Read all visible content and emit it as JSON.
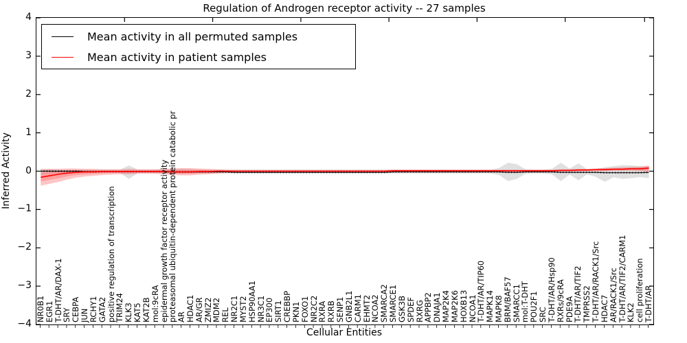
{
  "chart_data": {
    "type": "line",
    "title": "Regulation of Androgen receptor activity -- 27 samples",
    "xlabel": "Cellular Entities",
    "ylabel": "Inferred Activity",
    "ylim": [
      -4,
      4
    ],
    "yticks": [
      4,
      3,
      2,
      1,
      0,
      -1,
      -2,
      -3,
      -4
    ],
    "yticklabels": [
      "4",
      "3",
      "2",
      "1",
      "0",
      "−1",
      "−2",
      "−3",
      "−4"
    ],
    "grid": false,
    "legend_position": "upper left",
    "categories": [
      "NR0B1",
      "EGR1",
      "T-DHT/AR/DAX-1",
      "SRY",
      "CEBPA",
      "JUN",
      "RCHY1",
      "GATA2",
      "positive regulation of transcription",
      "TRIM24",
      "KLK3",
      "KAT5",
      "KAT2B",
      "mol:9cRA",
      "epidermal growth factor receptor activity",
      "proteasomal ubiquitin-dependent protein catabolic pr",
      "AR",
      "HDAC1",
      "AR/GR",
      "ZMIZ2",
      "MDM2",
      "REL",
      "NR2C1",
      "MYST2",
      "HSP90AA1",
      "NR3C1",
      "EP300",
      "SIRT1",
      "CREBBP",
      "PKN1",
      "FOXO1",
      "NR2C2",
      "RXRA",
      "RXRB",
      "SENP1",
      "GNB2L1",
      "CARM1",
      "EHMT2",
      "NCOA2",
      "SMARCA2",
      "SMARCE1",
      "GSK3B",
      "SPDEF",
      "RXRG",
      "APPBP2",
      "DNAJA1",
      "MAP2K4",
      "MAP2K6",
      "HOXB13",
      "NCOA1",
      "T-DHT/AR/TIP60",
      "MAPK14",
      "MAPK8",
      "BRM/BAF57",
      "SMARCC1",
      "mol:T-DHT",
      "POU2F1",
      "SRC",
      "T-DHT/AR/Hsp90",
      "RXRs/9cRA",
      "PDE9A",
      "T-DHT/AR/TIF2",
      "TMPRSS2",
      "T-DHT/AR/RACK1/Src",
      "HDAC7",
      "AR/RACK1/Src",
      "T-DHT/AR/TIF2/CARM1",
      "KLK2",
      "cell proliferation",
      "T-DHT/AR"
    ],
    "series": [
      {
        "name": "Mean activity in all permuted samples",
        "color": "#000000",
        "band_color": "#999999",
        "values": [
          0,
          0,
          0,
          0,
          0,
          -0.01,
          -0.01,
          -0.01,
          -0.01,
          -0.01,
          -0.01,
          -0.01,
          -0.01,
          -0.01,
          -0.01,
          -0.02,
          -0.02,
          -0.02,
          -0.02,
          -0.02,
          -0.02,
          -0.02,
          -0.03,
          -0.03,
          -0.03,
          -0.03,
          -0.03,
          -0.03,
          -0.03,
          -0.03,
          -0.03,
          -0.03,
          -0.03,
          -0.03,
          -0.03,
          -0.03,
          -0.03,
          -0.03,
          -0.03,
          -0.03,
          -0.02,
          -0.02,
          -0.02,
          -0.02,
          -0.02,
          -0.02,
          -0.02,
          -0.02,
          -0.02,
          -0.02,
          -0.02,
          -0.02,
          -0.02,
          -0.03,
          -0.03,
          -0.02,
          -0.02,
          -0.02,
          -0.02,
          -0.03,
          -0.03,
          -0.03,
          -0.03,
          -0.03,
          -0.04,
          -0.04,
          -0.04,
          -0.04,
          -0.04,
          -0.03
        ],
        "band_upper": [
          0.06,
          0.05,
          0.04,
          0.04,
          0.04,
          0.04,
          0.04,
          0.04,
          0.04,
          0.04,
          0.15,
          0.04,
          0.04,
          0.04,
          0.05,
          0.05,
          0.06,
          0.05,
          0.04,
          0.04,
          0.04,
          0.04,
          0.04,
          0.04,
          0.04,
          0.04,
          0.04,
          0.04,
          0.04,
          0.04,
          0.04,
          0.04,
          0.04,
          0.04,
          0.04,
          0.04,
          0.04,
          0.04,
          0.04,
          0.04,
          0.04,
          0.04,
          0.04,
          0.04,
          0.04,
          0.04,
          0.04,
          0.04,
          0.04,
          0.04,
          0.04,
          0.04,
          0.08,
          0.22,
          0.18,
          0.05,
          0.04,
          0.04,
          0.06,
          0.22,
          0.07,
          0.2,
          0.05,
          0.06,
          0.1,
          0.13,
          0.16,
          0.15,
          0.13,
          0.12
        ],
        "band_lower": [
          -0.08,
          -0.06,
          -0.05,
          -0.05,
          -0.05,
          -0.05,
          -0.05,
          -0.05,
          -0.05,
          -0.05,
          -0.2,
          -0.05,
          -0.05,
          -0.05,
          -0.06,
          -0.06,
          -0.07,
          -0.06,
          -0.06,
          -0.06,
          -0.06,
          -0.06,
          -0.06,
          -0.06,
          -0.06,
          -0.06,
          -0.06,
          -0.06,
          -0.06,
          -0.06,
          -0.06,
          -0.06,
          -0.06,
          -0.06,
          -0.06,
          -0.06,
          -0.06,
          -0.06,
          -0.06,
          -0.06,
          -0.06,
          -0.06,
          -0.06,
          -0.06,
          -0.06,
          -0.06,
          -0.06,
          -0.06,
          -0.06,
          -0.06,
          -0.06,
          -0.06,
          -0.1,
          -0.26,
          -0.2,
          -0.07,
          -0.06,
          -0.06,
          -0.08,
          -0.26,
          -0.09,
          -0.24,
          -0.08,
          -0.15,
          -0.28,
          -0.16,
          -0.2,
          -0.18,
          -0.16,
          -0.18
        ]
      },
      {
        "name": "Mean activity in patient samples",
        "color": "#ff0000",
        "band_color": "#ff3030",
        "values": [
          -0.16,
          -0.12,
          -0.08,
          -0.05,
          -0.03,
          -0.02,
          -0.02,
          -0.01,
          -0.01,
          -0.01,
          -0.01,
          -0.01,
          -0.01,
          -0.01,
          -0.01,
          -0.02,
          -0.02,
          -0.02,
          -0.01,
          -0.01,
          0,
          0,
          0,
          0,
          0,
          0,
          0,
          0,
          0,
          0,
          0,
          0,
          0,
          0,
          0,
          0,
          0,
          0,
          0,
          0,
          0.01,
          0.01,
          0.01,
          0.01,
          0.01,
          0.01,
          0.01,
          0.01,
          0.01,
          0.01,
          0.01,
          0.01,
          0.01,
          0.01,
          0.01,
          0.01,
          0.01,
          0.01,
          0.01,
          0.02,
          0.02,
          0.03,
          0.03,
          0.04,
          0.04,
          0.05,
          0.05,
          0.06,
          0.06,
          0.08
        ],
        "band_upper": [
          0.05,
          0.06,
          0.06,
          0.07,
          0.07,
          0.06,
          0.06,
          0.05,
          0.05,
          0.05,
          0.06,
          0.05,
          0.05,
          0.05,
          0.06,
          0.07,
          0.08,
          0.08,
          0.07,
          0.06,
          0.05,
          0.04,
          0.03,
          0.03,
          0.03,
          0.03,
          0.03,
          0.03,
          0.03,
          0.03,
          0.03,
          0.03,
          0.03,
          0.03,
          0.03,
          0.03,
          0.03,
          0.03,
          0.03,
          0.03,
          0.04,
          0.04,
          0.04,
          0.04,
          0.04,
          0.04,
          0.04,
          0.04,
          0.04,
          0.04,
          0.04,
          0.04,
          0.04,
          0.04,
          0.04,
          0.04,
          0.04,
          0.04,
          0.04,
          0.05,
          0.05,
          0.06,
          0.06,
          0.07,
          0.08,
          0.09,
          0.1,
          0.11,
          0.12,
          0.15
        ],
        "band_lower": [
          -0.38,
          -0.33,
          -0.28,
          -0.22,
          -0.17,
          -0.14,
          -0.12,
          -0.1,
          -0.09,
          -0.08,
          -0.08,
          -0.07,
          -0.07,
          -0.07,
          -0.08,
          -0.1,
          -0.11,
          -0.11,
          -0.09,
          -0.08,
          -0.06,
          -0.05,
          -0.04,
          -0.04,
          -0.04,
          -0.04,
          -0.04,
          -0.04,
          -0.04,
          -0.04,
          -0.04,
          -0.04,
          -0.04,
          -0.04,
          -0.04,
          -0.04,
          -0.04,
          -0.04,
          -0.04,
          -0.04,
          -0.03,
          -0.03,
          -0.03,
          -0.03,
          -0.03,
          -0.03,
          -0.03,
          -0.03,
          -0.03,
          -0.03,
          -0.03,
          -0.03,
          -0.03,
          -0.03,
          -0.03,
          -0.03,
          -0.03,
          -0.03,
          -0.02,
          -0.01,
          -0.01,
          -0.01,
          0,
          0,
          0,
          0.01,
          0.01,
          0.01,
          0,
          -0.02
        ]
      }
    ]
  }
}
